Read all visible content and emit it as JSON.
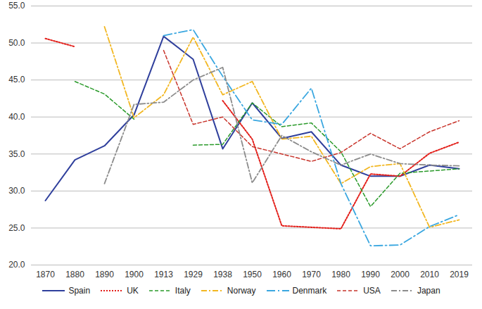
{
  "chart_data": {
    "type": "line",
    "categories": [
      "1870",
      "1880",
      "1890",
      "1900",
      "1913",
      "1929",
      "1938",
      "1950",
      "1960",
      "1970",
      "1980",
      "1990",
      "2000",
      "2010",
      "2019"
    ],
    "ylim": [
      20,
      55
    ],
    "yticks": [
      {
        "value": 20,
        "label": "20.0"
      },
      {
        "value": 25,
        "label": "25.0"
      },
      {
        "value": 30,
        "label": "30.0"
      },
      {
        "value": 35,
        "label": "35.0"
      },
      {
        "value": 40,
        "label": "40.0"
      },
      {
        "value": 45,
        "label": "45.0"
      },
      {
        "value": 50,
        "label": "50.0"
      },
      {
        "value": 55,
        "label": "55.0"
      }
    ],
    "grid": true,
    "legend": "bottom",
    "series": [
      {
        "name": "Spain",
        "color": "#2f3f9c",
        "line_style": "solid",
        "values": [
          28.7,
          34.2,
          36.1,
          40.3,
          50.9,
          47.8,
          35.7,
          41.9,
          37.1,
          38.0,
          33.5,
          32.0,
          32.0,
          33.5,
          33.0
        ]
      },
      {
        "name": "UK",
        "color": "#e3201b",
        "line_style": "dotted",
        "values": [
          50.6,
          49.5,
          null,
          null,
          null,
          null,
          42.2,
          37.0,
          25.3,
          25.1,
          24.9,
          32.3,
          32.0,
          35.1,
          36.6
        ]
      },
      {
        "name": "Italy",
        "color": "#2a9a2a",
        "line_style": "dashed",
        "values": [
          null,
          44.8,
          43.1,
          39.7,
          null,
          36.2,
          36.3,
          41.9,
          38.7,
          39.2,
          35.3,
          27.9,
          32.4,
          32.7,
          33.0
        ]
      },
      {
        "name": "Norway",
        "color": "#f2b722",
        "line_style": "dashdot",
        "values": [
          null,
          null,
          52.2,
          39.9,
          43.0,
          50.8,
          43.0,
          44.8,
          37.0,
          37.4,
          31.0,
          33.3,
          33.7,
          25.1,
          26.1
        ]
      },
      {
        "name": "Denmark",
        "color": "#3aa7e0",
        "line_style": "longdashdot",
        "values": [
          null,
          null,
          null,
          null,
          51.0,
          51.8,
          45.5,
          39.6,
          39.0,
          43.9,
          31.0,
          22.6,
          22.7,
          25.2,
          26.8
        ]
      },
      {
        "name": "USA",
        "color": "#c8342b",
        "line_style": "dashed",
        "values": [
          null,
          null,
          null,
          null,
          49.0,
          39.0,
          40.0,
          36.0,
          35.0,
          34.0,
          35.2,
          37.8,
          35.7,
          38.0,
          39.5
        ]
      },
      {
        "name": "Japan",
        "color": "#8c8c8c",
        "line_style": "dashdot",
        "values": [
          null,
          null,
          31.0,
          41.7,
          42.0,
          45.0,
          46.7,
          31.1,
          37.5,
          35.3,
          33.5,
          35.0,
          33.7,
          33.5,
          33.4
        ]
      }
    ]
  }
}
